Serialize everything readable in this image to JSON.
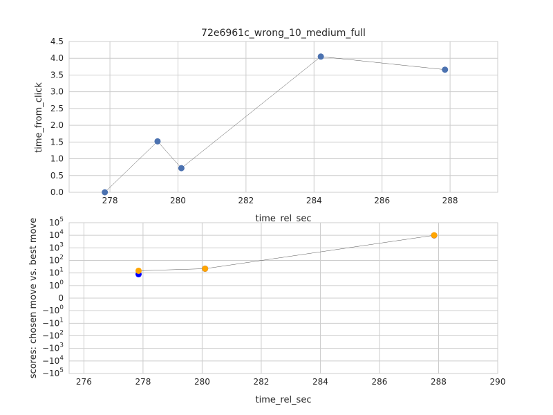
{
  "chart_data": [
    {
      "type": "scatter",
      "title": "72e6961c_wrong_10_medium_full",
      "xlabel": "time_rel_sec",
      "ylabel": "time_from_click",
      "xlim": [
        276.8,
        289.4
      ],
      "ylim": [
        0.0,
        4.5
      ],
      "x_ticks": [
        "278",
        "280",
        "282",
        "284",
        "286",
        "288"
      ],
      "y_ticks": [
        "0.0",
        "0.5",
        "1.0",
        "1.5",
        "2.0",
        "2.5",
        "3.0",
        "3.5",
        "4.0",
        "4.5"
      ],
      "grid": true,
      "series": [
        {
          "x": [
            277.85,
            279.4,
            280.1,
            284.2,
            287.85
          ],
          "y": [
            0.0,
            1.52,
            0.72,
            4.05,
            3.66
          ],
          "color": "#4c72b0",
          "connected_by_line": true
        }
      ]
    },
    {
      "type": "scatter",
      "xlabel": "time_rel_sec",
      "ylabel": "scores: chosen move vs. best move",
      "xlim": [
        275.5,
        290
      ],
      "y_scale": "symlog",
      "x_ticks": [
        "276",
        "278",
        "280",
        "282",
        "284",
        "286",
        "288",
        "290"
      ],
      "y_ticks": [
        {
          "base": "10",
          "exp": "5"
        },
        {
          "base": "10",
          "exp": "4"
        },
        {
          "base": "10",
          "exp": "3"
        },
        {
          "base": "10",
          "exp": "2"
        },
        {
          "base": "10",
          "exp": "1"
        },
        {
          "base": "10",
          "exp": "0"
        },
        {
          "base": "0",
          "exp": ""
        },
        {
          "base": "−10",
          "exp": "0"
        },
        {
          "base": "−10",
          "exp": "1"
        },
        {
          "base": "−10",
          "exp": "2"
        },
        {
          "base": "−10",
          "exp": "3"
        },
        {
          "base": "−10",
          "exp": "4"
        },
        {
          "base": "−10",
          "exp": "5"
        }
      ],
      "grid": true,
      "series": [
        {
          "x": [
            277.85,
            280.1,
            287.85
          ],
          "y": [
            8,
            22,
            9800
          ],
          "color": "#0000ff",
          "connected_by_line": false
        },
        {
          "x": [
            277.85,
            280.1,
            287.85
          ],
          "y": [
            15,
            22,
            10000
          ],
          "color": "#ffa500",
          "connected_by_line": true
        }
      ]
    }
  ]
}
